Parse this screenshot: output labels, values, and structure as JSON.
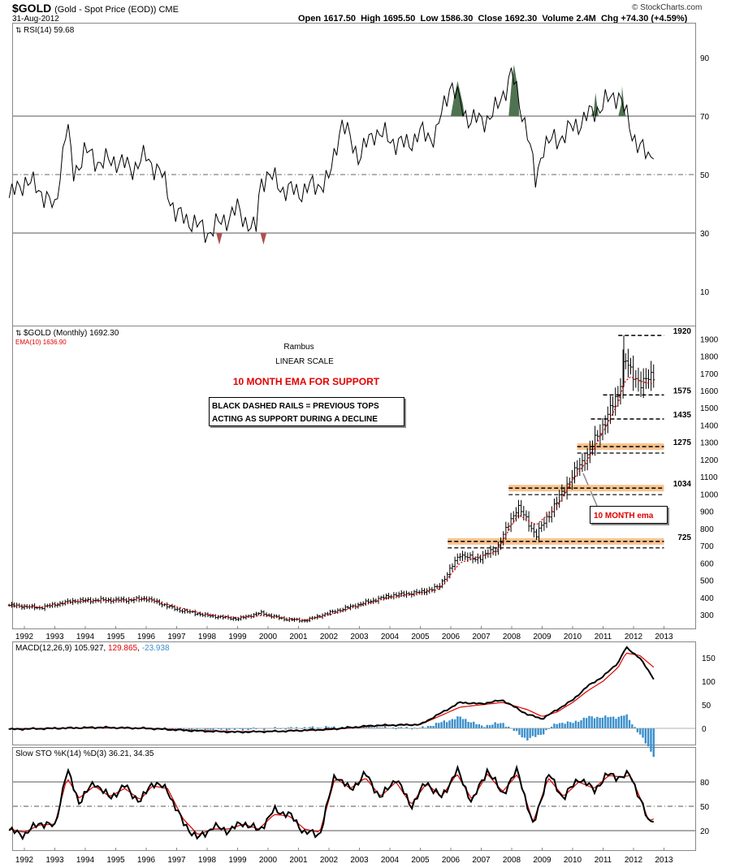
{
  "header": {
    "symbol": "$GOLD",
    "name": "(Gold - Spot Price (EOD)) CME",
    "date": "31-Aug-2012",
    "open_label": "Open",
    "open": "1617.50",
    "high_label": "High",
    "high": "1695.50",
    "low_label": "Low",
    "low": "1586.30",
    "close_label": "Close",
    "close": "1692.30",
    "volume_label": "Volume",
    "volume": "2.4M",
    "chg_label": "Chg",
    "chg": "+74.30 (+4.59%)",
    "copyright": "© StockCharts.com"
  },
  "colors": {
    "price": "#000000",
    "ema": "#e00000",
    "macd_hist": "#3a8fcc",
    "rsi_fill": "#4f7350",
    "band": "#f8c38f",
    "grid": "#a8a8a8"
  },
  "chart_data": [
    {
      "type": "line",
      "panel": "rsi",
      "legend": "RSI(14) 59.68",
      "ylim": [
        0,
        100
      ],
      "y_ticks": [
        "90",
        "70",
        "50",
        "30",
        "10"
      ],
      "reference_lines": [
        70,
        50,
        30
      ],
      "overbought_fill": "above 70",
      "oversold_fill": "below 30",
      "x": [
        1991.5,
        1992.0,
        1992.5,
        1993.0,
        1993.4,
        1993.6,
        1994.0,
        1994.5,
        1995.0,
        1995.5,
        1996.0,
        1996.5,
        1997.0,
        1997.5,
        1998.0,
        1998.5,
        1999.0,
        1999.6,
        1999.75,
        2000.0,
        2000.5,
        2001.0,
        2001.5,
        2002.0,
        2002.4,
        2003.0,
        2003.5,
        2004.0,
        2004.5,
        2005.0,
        2005.5,
        2006.0,
        2006.3,
        2006.5,
        2007.0,
        2007.5,
        2008.0,
        2008.2,
        2008.5,
        2008.8,
        2009.0,
        2009.5,
        2010.0,
        2010.5,
        2011.0,
        2011.5,
        2011.7,
        2011.9,
        2012.2,
        2012.5,
        2012.66
      ],
      "series": [
        {
          "values": [
            42,
            48,
            45,
            38,
            68,
            50,
            58,
            54,
            55,
            52,
            56,
            50,
            36,
            34,
            30,
            34,
            38,
            30,
            48,
            50,
            45,
            44,
            46,
            48,
            68,
            56,
            65,
            62,
            60,
            64,
            63,
            82,
            74,
            70,
            68,
            72,
            85,
            76,
            66,
            46,
            60,
            62,
            66,
            70,
            74,
            78,
            72,
            65,
            60,
            55,
            59.68
          ]
        }
      ]
    },
    {
      "type": "bar",
      "panel": "price",
      "legend": "$GOLD (Monthly) 1692.30",
      "ema_legend": "EMA(10) 1636.90",
      "y_ticks": [
        "1900",
        "1800",
        "1700",
        "1600",
        "1500",
        "1400",
        "1300",
        "1200",
        "1100",
        "1000",
        "900",
        "800",
        "700",
        "600",
        "500",
        "400",
        "300"
      ],
      "ylim": [
        220,
        1960
      ],
      "x_ticks": [
        "1992",
        "1993",
        "1994",
        "1995",
        "1996",
        "1997",
        "1998",
        "1999",
        "2000",
        "2001",
        "2002",
        "2003",
        "2004",
        "2005",
        "2006",
        "2007",
        "2008",
        "2009",
        "2010",
        "2011",
        "2012",
        "2013"
      ],
      "x": [
        1991.5,
        1992.5,
        1993.6,
        1994.5,
        1995.5,
        1996.0,
        1997.0,
        1998.0,
        1999.0,
        1999.75,
        2000.5,
        2001.2,
        2002.0,
        2003.0,
        2004.0,
        2005.0,
        2005.6,
        2006.3,
        2006.8,
        2007.5,
        2008.2,
        2008.8,
        2009.5,
        2010.0,
        2010.5,
        2011.0,
        2011.5,
        2011.7,
        2011.9,
        2012.3,
        2012.66
      ],
      "series": [
        {
          "name": "$GOLD (Monthly)",
          "values": [
            355,
            340,
            380,
            385,
            385,
            395,
            330,
            295,
            275,
            310,
            275,
            265,
            310,
            360,
            410,
            430,
            460,
            650,
            620,
            680,
            930,
            760,
            960,
            1110,
            1230,
            1400,
            1580,
            1800,
            1700,
            1640,
            1692.3
          ]
        },
        {
          "name": "EMA(10)",
          "values": [
            352,
            343,
            375,
            382,
            385,
            392,
            345,
            300,
            282,
            295,
            282,
            268,
            298,
            352,
            400,
            425,
            445,
            600,
            630,
            665,
            880,
            820,
            930,
            1080,
            1200,
            1360,
            1530,
            1650,
            1680,
            1650,
            1636.9
          ]
        }
      ],
      "annotations": {
        "author": "Rambus",
        "scale": "LINEAR SCALE",
        "title_red": "10 MONTH EMA FOR SUPPORT",
        "box_line1": "BLACK DASHED RAILS = PREVIOUS TOPS",
        "box_line2": "ACTING AS SUPPORT DURING A DECLINE",
        "ema_callout": "10 MONTH ema",
        "rails": [
          "1920",
          "1575",
          "1435",
          "1275",
          "1034",
          "725"
        ]
      }
    },
    {
      "type": "line",
      "panel": "macd",
      "legend_name": "MACD(12,26,9)",
      "legend_macd": "105.927",
      "legend_signal": "129.865",
      "legend_hist": "-23.938",
      "y_ticks": [
        "150",
        "100",
        "50",
        "0"
      ],
      "x": [
        1991.5,
        1993.0,
        1994.5,
        1996.0,
        1997.5,
        1999.0,
        2000.5,
        2002.0,
        2003.5,
        2005.0,
        2006.3,
        2007.0,
        2007.7,
        2008.5,
        2009.0,
        2009.5,
        2010.0,
        2010.5,
        2011.0,
        2011.5,
        2011.75,
        2012.2,
        2012.66
      ],
      "series": [
        {
          "name": "MACD",
          "values": [
            -2,
            0,
            2,
            0,
            -5,
            -8,
            -6,
            -2,
            6,
            8,
            55,
            52,
            60,
            30,
            20,
            40,
            60,
            90,
            110,
            140,
            172,
            150,
            105.9
          ]
        },
        {
          "name": "Signal",
          "values": [
            -1,
            0,
            1,
            0,
            -4,
            -7,
            -6,
            -3,
            5,
            8,
            45,
            50,
            55,
            40,
            25,
            35,
            55,
            80,
            100,
            130,
            160,
            155,
            129.9
          ]
        },
        {
          "name": "Histogram",
          "values": [
            -1,
            0,
            1,
            0,
            -1,
            -1,
            0,
            1,
            1,
            0,
            10,
            2,
            5,
            -10,
            -5,
            5,
            5,
            10,
            10,
            10,
            12,
            -5,
            -23.9
          ]
        }
      ]
    },
    {
      "type": "line",
      "panel": "stochastic",
      "legend": "Slow STO %K(14) %D(3) 36.21, 34.35",
      "y_ticks": [
        "80",
        "50",
        "20"
      ],
      "reference_lines": [
        80,
        50,
        20
      ],
      "x_ticks": [
        "1992",
        "1993",
        "1994",
        "1995",
        "1996",
        "1997",
        "1998",
        "1999",
        "2000",
        "2001",
        "2002",
        "2003",
        "2004",
        "2005",
        "2006",
        "2007",
        "2008",
        "2009",
        "2010",
        "2011",
        "2012",
        "2013"
      ],
      "x": [
        1991.5,
        1992.0,
        1992.5,
        1993.0,
        1993.4,
        1993.8,
        1994.3,
        1994.8,
        1995.3,
        1995.8,
        1996.2,
        1996.7,
        1997.2,
        1997.7,
        1998.2,
        1998.7,
        1999.2,
        1999.7,
        2000.2,
        2000.7,
        2001.2,
        2001.7,
        2002.2,
        2002.7,
        2003.2,
        2003.7,
        2004.2,
        2004.7,
        2005.2,
        2005.7,
        2006.2,
        2006.7,
        2007.2,
        2007.7,
        2008.2,
        2008.7,
        2009.2,
        2009.7,
        2010.2,
        2010.7,
        2011.2,
        2011.6,
        2011.9,
        2012.2,
        2012.5,
        2012.66
      ],
      "series": [
        {
          "name": "%K",
          "values": [
            20,
            15,
            30,
            25,
            95,
            55,
            80,
            60,
            75,
            55,
            80,
            70,
            30,
            10,
            25,
            20,
            30,
            20,
            45,
            40,
            18,
            15,
            90,
            70,
            90,
            60,
            85,
            50,
            80,
            60,
            95,
            55,
            95,
            65,
            95,
            25,
            90,
            60,
            85,
            70,
            90,
            85,
            90,
            60,
            30,
            36.21
          ]
        },
        {
          "name": "%D",
          "values": [
            22,
            18,
            27,
            28,
            85,
            60,
            75,
            62,
            72,
            58,
            75,
            72,
            35,
            15,
            22,
            22,
            28,
            22,
            40,
            38,
            22,
            18,
            85,
            72,
            85,
            62,
            80,
            52,
            78,
            62,
            90,
            58,
            90,
            68,
            90,
            30,
            85,
            62,
            80,
            72,
            88,
            86,
            88,
            62,
            32,
            34.35
          ]
        }
      ]
    }
  ]
}
